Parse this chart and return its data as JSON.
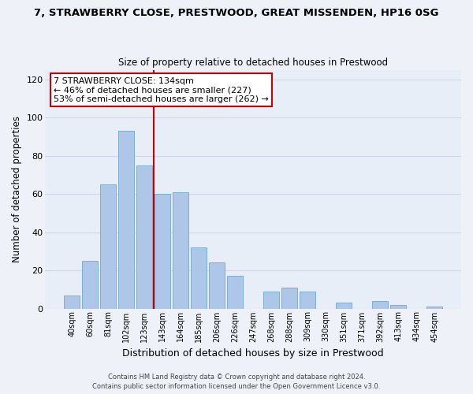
{
  "title": "7, STRAWBERRY CLOSE, PRESTWOOD, GREAT MISSENDEN, HP16 0SG",
  "subtitle": "Size of property relative to detached houses in Prestwood",
  "xlabel": "Distribution of detached houses by size in Prestwood",
  "ylabel": "Number of detached properties",
  "bar_labels": [
    "40sqm",
    "60sqm",
    "81sqm",
    "102sqm",
    "123sqm",
    "143sqm",
    "164sqm",
    "185sqm",
    "206sqm",
    "226sqm",
    "247sqm",
    "268sqm",
    "288sqm",
    "309sqm",
    "330sqm",
    "351sqm",
    "371sqm",
    "392sqm",
    "413sqm",
    "434sqm",
    "454sqm"
  ],
  "bar_values": [
    7,
    25,
    65,
    93,
    75,
    60,
    61,
    32,
    24,
    17,
    0,
    9,
    11,
    9,
    0,
    3,
    0,
    4,
    2,
    0,
    1
  ],
  "bar_color": "#aec6e8",
  "bar_edge_color": "#7aafd4",
  "vline_x": 4.5,
  "vline_color": "#cc0000",
  "ylim": [
    0,
    125
  ],
  "yticks": [
    0,
    20,
    40,
    60,
    80,
    100,
    120
  ],
  "annotation_title": "7 STRAWBERRY CLOSE: 134sqm",
  "annotation_line1": "← 46% of detached houses are smaller (227)",
  "annotation_line2": "53% of semi-detached houses are larger (262) →",
  "annotation_box_color": "#ffffff",
  "annotation_box_edge": "#cc0000",
  "footer_line1": "Contains HM Land Registry data © Crown copyright and database right 2024.",
  "footer_line2": "Contains public sector information licensed under the Open Government Licence v3.0.",
  "background_color": "#eef2f8",
  "grid_color": "#d0d8e8",
  "plot_bg_color": "#e8eef8"
}
